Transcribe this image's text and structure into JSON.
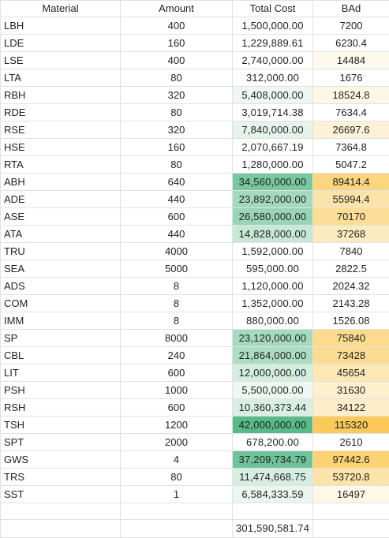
{
  "headers": {
    "material": "Material",
    "amount": "Amount",
    "total_cost": "Total Cost",
    "bad": "BAd"
  },
  "rows": [
    {
      "material": "LBH",
      "amount": "400",
      "total_cost": "1,500,000.00",
      "bad": "7200",
      "cost_bg": "#ffffff",
      "bad_bg": "#ffffff"
    },
    {
      "material": "LDE",
      "amount": "160",
      "total_cost": "1,229,889.61",
      "bad": "6230.4",
      "cost_bg": "#ffffff",
      "bad_bg": "#ffffff"
    },
    {
      "material": "LSE",
      "amount": "400",
      "total_cost": "2,740,000.00",
      "bad": "14484",
      "cost_bg": "#ffffff",
      "bad_bg": "#fef9ec"
    },
    {
      "material": "LTA",
      "amount": "80",
      "total_cost": "312,000.00",
      "bad": "1676",
      "cost_bg": "#ffffff",
      "bad_bg": "#ffffff"
    },
    {
      "material": "RBH",
      "amount": "320",
      "total_cost": "5,408,000.00",
      "bad": "18524.8",
      "cost_bg": "#eef7f2",
      "bad_bg": "#fef7e6"
    },
    {
      "material": "RDE",
      "amount": "80",
      "total_cost": "3,019,714.38",
      "bad": "7634.4",
      "cost_bg": "#ffffff",
      "bad_bg": "#ffffff"
    },
    {
      "material": "RSE",
      "amount": "320",
      "total_cost": "7,840,000.00",
      "bad": "26697.6",
      "cost_bg": "#e5f3eb",
      "bad_bg": "#fdf1d7"
    },
    {
      "material": "HSE",
      "amount": "160",
      "total_cost": "2,070,667.19",
      "bad": "7364.8",
      "cost_bg": "#ffffff",
      "bad_bg": "#ffffff"
    },
    {
      "material": "RTA",
      "amount": "80",
      "total_cost": "1,280,000.00",
      "bad": "5047.2",
      "cost_bg": "#ffffff",
      "bad_bg": "#ffffff"
    },
    {
      "material": "ABH",
      "amount": "640",
      "total_cost": "34,560,000.00",
      "bad": "89414.4",
      "cost_bg": "#78c79f",
      "bad_bg": "#fbd67e"
    },
    {
      "material": "ADE",
      "amount": "440",
      "total_cost": "23,892,000.00",
      "bad": "55994.4",
      "cost_bg": "#a3d9bd",
      "bad_bg": "#fce3a9"
    },
    {
      "material": "ASE",
      "amount": "600",
      "total_cost": "26,580,000.00",
      "bad": "70170",
      "cost_bg": "#98d4b5",
      "bad_bg": "#fcdd95"
    },
    {
      "material": "ATA",
      "amount": "440",
      "total_cost": "14,828,000.00",
      "bad": "37268",
      "cost_bg": "#c7e8d6",
      "bad_bg": "#fdebc0"
    },
    {
      "material": "TRU",
      "amount": "4000",
      "total_cost": "1,592,000.00",
      "bad": "7840",
      "cost_bg": "#ffffff",
      "bad_bg": "#ffffff"
    },
    {
      "material": "SEA",
      "amount": "5000",
      "total_cost": "595,000.00",
      "bad": "2822.5",
      "cost_bg": "#ffffff",
      "bad_bg": "#ffffff"
    },
    {
      "material": "ADS",
      "amount": "8",
      "total_cost": "1,120,000.00",
      "bad": "2024.32",
      "cost_bg": "#ffffff",
      "bad_bg": "#ffffff"
    },
    {
      "material": "COM",
      "amount": "8",
      "total_cost": "1,352,000.00",
      "bad": "2143.28",
      "cost_bg": "#ffffff",
      "bad_bg": "#ffffff"
    },
    {
      "material": "IMM",
      "amount": "8",
      "total_cost": "880,000.00",
      "bad": "1526.08",
      "cost_bg": "#ffffff",
      "bad_bg": "#ffffff"
    },
    {
      "material": "SP",
      "amount": "8000",
      "total_cost": "23,120,000.00",
      "bad": "75840",
      "cost_bg": "#a6dabf",
      "bad_bg": "#fcdb8f"
    },
    {
      "material": "CBL",
      "amount": "240",
      "total_cost": "21,864,000.00",
      "bad": "73428",
      "cost_bg": "#acdcc3",
      "bad_bg": "#fcdc92"
    },
    {
      "material": "LIT",
      "amount": "600",
      "total_cost": "12,000,000.00",
      "bad": "45654",
      "cost_bg": "#d3ede0",
      "bad_bg": "#fde7b4"
    },
    {
      "material": "PSH",
      "amount": "1000",
      "total_cost": "5,500,000.00",
      "bad": "31630",
      "cost_bg": "#eef7f2",
      "bad_bg": "#feefcf"
    },
    {
      "material": "RSH",
      "amount": "600",
      "total_cost": "10,360,373.44",
      "bad": "34122",
      "cost_bg": "#d9efe4",
      "bad_bg": "#feedca"
    },
    {
      "material": "TSH",
      "amount": "1200",
      "total_cost": "42,000,000.00",
      "bad": "115320",
      "cost_bg": "#57ba87",
      "bad_bg": "#fbca58"
    },
    {
      "material": "SPT",
      "amount": "2000",
      "total_cost": "678,200.00",
      "bad": "2610",
      "cost_bg": "#ffffff",
      "bad_bg": "#ffffff"
    },
    {
      "material": "GWS",
      "amount": "4",
      "total_cost": "37,209,734.79",
      "bad": "97442.6",
      "cost_bg": "#6fc398",
      "bad_bg": "#fbd373"
    },
    {
      "material": "TRS",
      "amount": "80",
      "total_cost": "11,474,668.75",
      "bad": "53720.8",
      "cost_bg": "#d5eee1",
      "bad_bg": "#fce3aa"
    },
    {
      "material": "SST",
      "amount": "1",
      "total_cost": "6,584,333.59",
      "bad": "16497",
      "cost_bg": "#eaf6ef",
      "bad_bg": "#fef8e9"
    }
  ],
  "total_cost_sum": "301,590,581.74"
}
